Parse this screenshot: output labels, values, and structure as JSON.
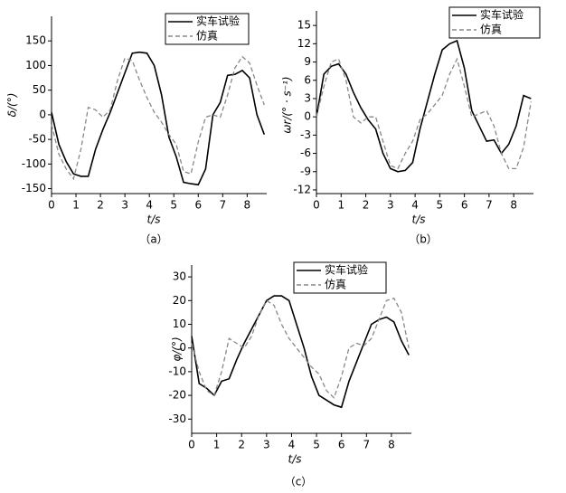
{
  "chart_data": [
    {
      "type": "line",
      "caption": "（a）",
      "x_label": "t/s",
      "y_label": "δ/(°)",
      "x": [
        0,
        0.3,
        0.6,
        0.9,
        1.2,
        1.5,
        1.8,
        2.1,
        2.4,
        2.7,
        3.0,
        3.3,
        3.6,
        3.9,
        4.2,
        4.5,
        4.8,
        5.1,
        5.4,
        5.7,
        6.0,
        6.3,
        6.6,
        6.9,
        7.2,
        7.5,
        7.8,
        8.1,
        8.4,
        8.7
      ],
      "series": [
        {
          "name": "实车试验",
          "color": "#000000",
          "line_style": "solid",
          "values": [
            5,
            -60,
            -95,
            -120,
            -125,
            -125,
            -70,
            -30,
            5,
            45,
            85,
            125,
            127,
            125,
            100,
            40,
            -45,
            -85,
            -137,
            -140,
            -142,
            -110,
            0,
            25,
            80,
            82,
            90,
            75,
            0,
            -40
          ]
        },
        {
          "name": "仿真",
          "color": "#888888",
          "line_style": "dashed",
          "values": [
            -20,
            -80,
            -110,
            -130,
            -70,
            15,
            10,
            -5,
            10,
            70,
            115,
            110,
            70,
            35,
            5,
            -15,
            -40,
            -60,
            -115,
            -120,
            -55,
            -5,
            0,
            -5,
            40,
            95,
            118,
            105,
            60,
            20
          ]
        }
      ],
      "xlim": [
        0,
        8.8
      ],
      "xticks": [
        0,
        1,
        2,
        3,
        4,
        5,
        6,
        7,
        8
      ],
      "ylim": [
        -160,
        200
      ],
      "yticks": [
        -150,
        -100,
        -50,
        0,
        50,
        100,
        150
      ]
    },
    {
      "type": "line",
      "caption": "（b）",
      "x_label": "t/s",
      "y_label": "ωr/(° · s⁻¹)",
      "x": [
        0,
        0.3,
        0.6,
        0.9,
        1.2,
        1.5,
        1.8,
        2.1,
        2.4,
        2.7,
        3.0,
        3.3,
        3.6,
        3.9,
        4.2,
        4.5,
        4.8,
        5.1,
        5.4,
        5.7,
        6.0,
        6.3,
        6.6,
        6.9,
        7.2,
        7.5,
        7.8,
        8.1,
        8.4,
        8.7
      ],
      "series": [
        {
          "name": "实车试验",
          "color": "#000000",
          "line_style": "solid",
          "values": [
            0,
            7,
            8.3,
            8.7,
            7,
            4,
            1.5,
            -0.5,
            -2,
            -6,
            -8.5,
            -9,
            -8.8,
            -7.5,
            -2,
            2.5,
            7,
            11,
            12,
            12.5,
            8,
            1,
            -1.5,
            -4,
            -3.8,
            -6,
            -4.5,
            -1.5,
            3.5,
            3
          ]
        },
        {
          "name": "仿真",
          "color": "#888888",
          "line_style": "dashed",
          "values": [
            0,
            5,
            9,
            9.5,
            6,
            0,
            -1,
            0,
            0,
            -4,
            -8,
            -8.5,
            -6,
            -4,
            -0.5,
            0.5,
            2,
            3.5,
            7,
            9.5,
            5,
            0,
            0.5,
            1,
            -1.5,
            -6,
            -8.5,
            -8.5,
            -5,
            2.5
          ]
        }
      ],
      "xlim": [
        0,
        8.8
      ],
      "xticks": [
        0,
        1,
        2,
        3,
        4,
        5,
        6,
        7,
        8
      ],
      "ylim": [
        -12.6,
        17.4
      ],
      "yticks": [
        -12,
        -9,
        -6,
        -3,
        0,
        3,
        6,
        9,
        12,
        15
      ]
    },
    {
      "type": "line",
      "caption": "（c）",
      "x_label": "t/s",
      "y_label": "φ/(°)",
      "x": [
        0,
        0.3,
        0.6,
        0.9,
        1.2,
        1.5,
        1.8,
        2.1,
        2.4,
        2.7,
        3.0,
        3.3,
        3.6,
        3.9,
        4.2,
        4.5,
        4.8,
        5.1,
        5.4,
        5.7,
        6.0,
        6.3,
        6.6,
        6.9,
        7.2,
        7.5,
        7.8,
        8.1,
        8.4,
        8.7
      ],
      "series": [
        {
          "name": "实车试验",
          "color": "#000000",
          "line_style": "solid",
          "values": [
            5,
            -15,
            -17,
            -20,
            -14,
            -13,
            -5,
            2,
            8,
            14,
            20,
            22,
            22,
            20,
            10,
            0,
            -12,
            -20,
            -22,
            -24,
            -25,
            -14,
            -6,
            2,
            10,
            12,
            13,
            11,
            3,
            -3
          ]
        },
        {
          "name": "仿真",
          "color": "#888888",
          "line_style": "dashed",
          "values": [
            2,
            -10,
            -18,
            -20,
            -10,
            4,
            2,
            0,
            5,
            14,
            20,
            18,
            10,
            4,
            0,
            -4,
            -8,
            -11,
            -18,
            -21,
            -12,
            0,
            2,
            1,
            4,
            12,
            20,
            21,
            15,
            0
          ]
        }
      ],
      "xlim": [
        0,
        8.8
      ],
      "xticks": [
        0,
        1,
        2,
        3,
        4,
        5,
        6,
        7,
        8
      ],
      "ylim": [
        -36,
        35
      ],
      "yticks": [
        -30,
        -20,
        -10,
        0,
        10,
        20,
        30
      ]
    }
  ]
}
